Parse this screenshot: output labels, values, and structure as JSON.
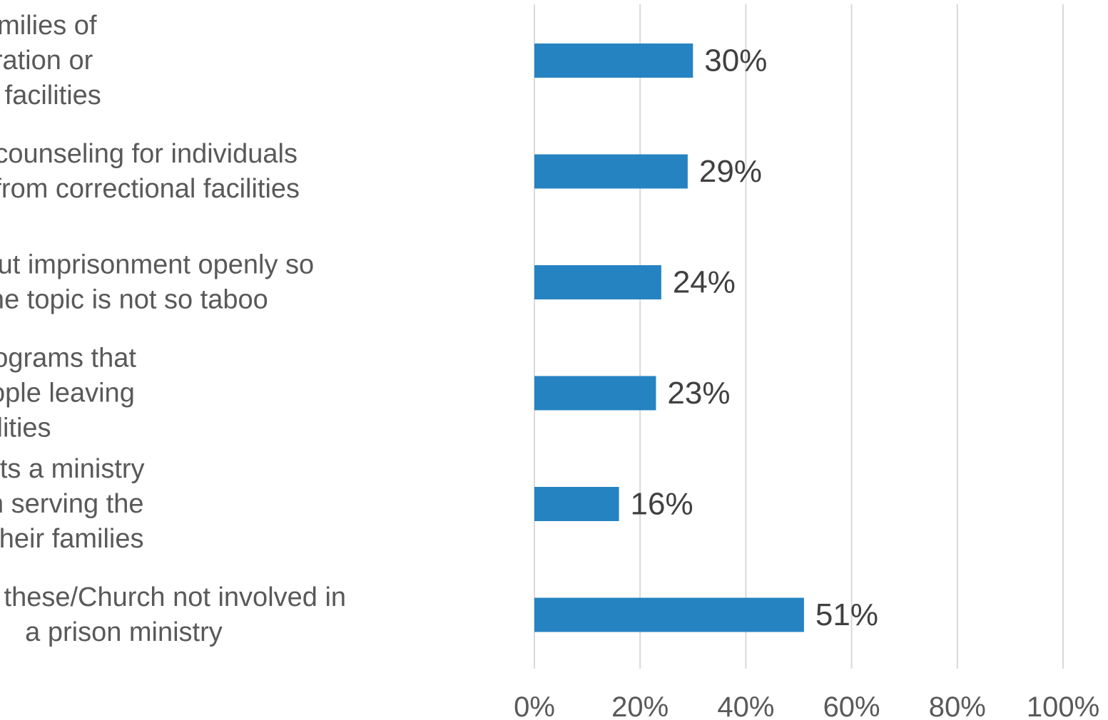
{
  "chart_data": {
    "type": "bar",
    "orientation": "horizontal",
    "categories": [
      "Provides counseling for families of individuals during incarceration or returning from correctional facilities",
      "Provides counseling for individuals returning from correctional facilities",
      "Talks about imprisonment openly so that the topic is not so taboo",
      "Supports residential programs that help with reentry of people leaving correctional facilities",
      "Financially supports a ministry outside the church serving the incarcerated and their families",
      "None of these/Church not involved in a prison ministry"
    ],
    "category_lines": [
      [
        "Provides counseling for families of",
        "individuals during incarceration or",
        "returning from correctional facilities"
      ],
      [
        "Provides counseling for individuals",
        "returning from correctional facilities"
      ],
      [
        "Talks about imprisonment openly so",
        "that the topic is not so taboo"
      ],
      [
        "Supports residential programs that",
        "help with reentry of people leaving",
        "correctional facilities"
      ],
      [
        "Financially supports a ministry",
        "outside the church serving the",
        "incarcerated and their families"
      ],
      [
        "None of these/Church not involved in",
        "a prison ministry"
      ]
    ],
    "values": [
      30,
      29,
      24,
      23,
      16,
      51
    ],
    "value_labels": [
      "30%",
      "29%",
      "24%",
      "23%",
      "16%",
      "51%"
    ],
    "xlim": [
      0,
      100
    ],
    "x_ticks": [
      0,
      20,
      40,
      60,
      80,
      100
    ],
    "x_tick_labels": [
      "0%",
      "20%",
      "40%",
      "60%",
      "80%",
      "100%"
    ],
    "title": "",
    "xlabel": "",
    "ylabel": "",
    "grid": true,
    "legend": "none",
    "bar_color": "#2683c1"
  }
}
